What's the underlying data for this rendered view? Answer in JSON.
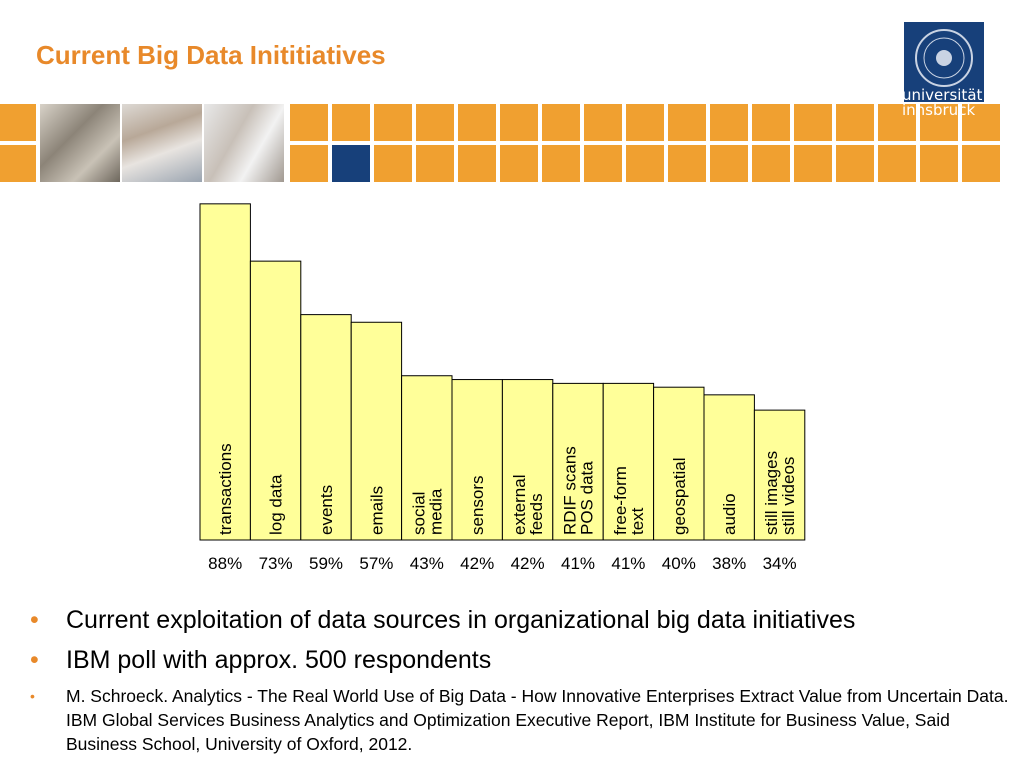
{
  "title": "Current Big Data Inititiatives",
  "logo": {
    "line1": "universität",
    "line2": "innsbruck"
  },
  "colors": {
    "accent": "#e8892a",
    "bar_fill": "#ffff99",
    "logo_blue": "#17407a",
    "tile_orange": "#f0a030"
  },
  "chart_data": {
    "type": "bar",
    "categories": [
      [
        "transactions"
      ],
      [
        "log data"
      ],
      [
        "events"
      ],
      [
        "emails"
      ],
      [
        "social",
        "media"
      ],
      [
        "sensors"
      ],
      [
        "external",
        "feeds"
      ],
      [
        "RDIF scans",
        "POS data"
      ],
      [
        "free-form",
        "text"
      ],
      [
        "geospatial"
      ],
      [
        "audio"
      ],
      [
        "still images",
        "still videos"
      ]
    ],
    "values": [
      88,
      73,
      59,
      57,
      43,
      42,
      42,
      41,
      41,
      40,
      38,
      34
    ],
    "value_labels": [
      "88%",
      "73%",
      "59%",
      "57%",
      "43%",
      "42%",
      "42%",
      "41%",
      "41%",
      "40%",
      "38%",
      "34%"
    ],
    "unit": "%",
    "ylim": [
      0,
      100
    ],
    "grid": false
  },
  "bullets": [
    {
      "text": "Current exploitation of data sources in organizational big data initiatives",
      "size": "large"
    },
    {
      "text": "IBM poll with approx. 500 respondents",
      "size": "large"
    },
    {
      "text": "M. Schroeck. Analytics - The Real World Use of Big Data - How Innovative Enterprises Extract Value from Uncertain Data. IBM Global Services Business Analytics and Optimization Executive Report, IBM Institute for Business Value, Said Business School, University of Oxford, 2012.",
      "size": "small"
    }
  ],
  "bullet_symbol": "•"
}
